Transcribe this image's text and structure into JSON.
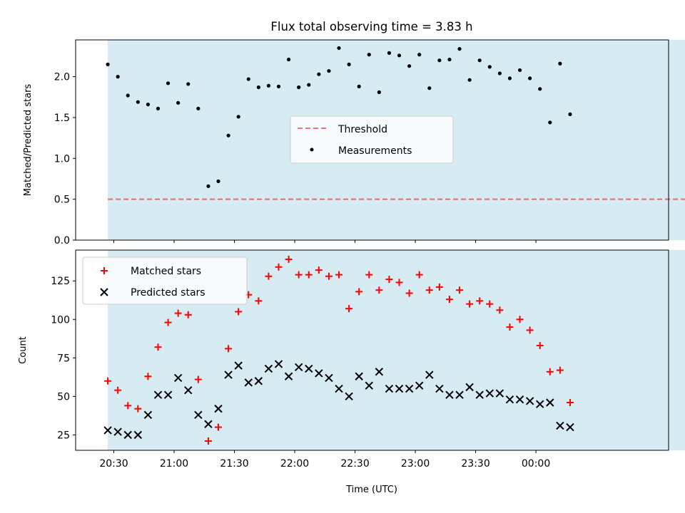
{
  "figure": {
    "title": "Flux total observing time = 3.83 h",
    "xlabel": "Time (UTC)",
    "xticks": [
      "20:30",
      "21:00",
      "21:30",
      "22:00",
      "22:30",
      "23:00",
      "23:30",
      "00:00"
    ]
  },
  "colors": {
    "shade": "#add8e6",
    "threshold": "#ff0000",
    "measurements": "#000000",
    "matched": "#ff0000",
    "predicted": "#000000"
  },
  "chart_data": [
    {
      "type": "scatter",
      "ylabel": "Matched/Predicted stars",
      "ylim": [
        0,
        2.45
      ],
      "yticks": [
        "0.0",
        "0.5",
        "1.0",
        "1.5",
        "2.0"
      ],
      "xlim": [
        "20:11",
        "01:06"
      ],
      "grid": false,
      "legend_placement": "center-right",
      "observing_window": [
        "20:27",
        "01:17"
      ],
      "threshold": {
        "name": "Threshold",
        "value": 0.5
      },
      "series": [
        {
          "name": "Measurements",
          "x": [
            "20:27",
            "20:32",
            "20:37",
            "20:42",
            "20:47",
            "20:52",
            "20:57",
            "21:02",
            "21:07",
            "21:12",
            "21:17",
            "21:22",
            "21:27",
            "21:32",
            "21:37",
            "21:42",
            "21:47",
            "21:52",
            "21:57",
            "22:02",
            "22:07",
            "22:12",
            "22:17",
            "22:22",
            "22:27",
            "22:32",
            "22:37",
            "22:42",
            "22:47",
            "22:52",
            "22:57",
            "23:02",
            "23:07",
            "23:12",
            "23:17",
            "23:22",
            "23:27",
            "23:32",
            "23:37",
            "23:42",
            "23:47",
            "23:52",
            "23:57",
            "00:02",
            "00:07",
            "00:12",
            "00:17"
          ],
          "values": [
            2.15,
            2.0,
            1.77,
            1.69,
            1.66,
            1.61,
            1.92,
            1.68,
            1.91,
            1.61,
            0.66,
            0.72,
            1.28,
            1.51,
            1.97,
            1.87,
            1.89,
            1.88,
            2.21,
            1.87,
            1.9,
            2.03,
            2.07,
            2.35,
            2.15,
            1.88,
            2.27,
            1.81,
            2.29,
            2.26,
            2.13,
            2.27,
            1.86,
            2.2,
            2.21,
            2.34,
            1.96,
            2.2,
            2.12,
            2.04,
            1.98,
            2.08,
            1.98,
            1.85,
            1.44,
            2.16,
            1.54
          ]
        }
      ]
    },
    {
      "type": "scatter",
      "ylabel": "Count",
      "ylim": [
        15,
        145
      ],
      "yticks": [
        "25",
        "50",
        "75",
        "100",
        "125"
      ],
      "xlim": [
        "20:11",
        "01:06"
      ],
      "grid": false,
      "legend_placement": "top-left",
      "observing_window": [
        "20:27",
        "01:17"
      ],
      "series": [
        {
          "name": "Matched stars",
          "marker": "plus",
          "x": [
            "20:27",
            "20:32",
            "20:37",
            "20:42",
            "20:47",
            "20:52",
            "20:57",
            "21:02",
            "21:07",
            "21:12",
            "21:17",
            "21:22",
            "21:27",
            "21:32",
            "21:37",
            "21:42",
            "21:47",
            "21:52",
            "21:57",
            "22:02",
            "22:07",
            "22:12",
            "22:17",
            "22:22",
            "22:27",
            "22:32",
            "22:37",
            "22:42",
            "22:47",
            "22:52",
            "22:57",
            "23:02",
            "23:07",
            "23:12",
            "23:17",
            "23:22",
            "23:27",
            "23:32",
            "23:37",
            "23:42",
            "23:47",
            "23:52",
            "23:57",
            "00:02",
            "00:07",
            "00:12",
            "00:17"
          ],
          "values": [
            60,
            54,
            44,
            42,
            63,
            82,
            98,
            104,
            103,
            61,
            21,
            30,
            81,
            105,
            116,
            112,
            128,
            134,
            139,
            129,
            129,
            132,
            128,
            129,
            107,
            118,
            129,
            119,
            126,
            124,
            117,
            129,
            119,
            121,
            113,
            119,
            110,
            112,
            110,
            106,
            95,
            100,
            93,
            83,
            66,
            67,
            46
          ]
        },
        {
          "name": "Predicted stars",
          "marker": "x",
          "x": [
            "20:27",
            "20:32",
            "20:37",
            "20:42",
            "20:47",
            "20:52",
            "20:57",
            "21:02",
            "21:07",
            "21:12",
            "21:17",
            "21:22",
            "21:27",
            "21:32",
            "21:37",
            "21:42",
            "21:47",
            "21:52",
            "21:57",
            "22:02",
            "22:07",
            "22:12",
            "22:17",
            "22:22",
            "22:27",
            "22:32",
            "22:37",
            "22:42",
            "22:47",
            "22:52",
            "22:57",
            "23:02",
            "23:07",
            "23:12",
            "23:17",
            "23:22",
            "23:27",
            "23:32",
            "23:37",
            "23:42",
            "23:47",
            "23:52",
            "23:57",
            "00:02",
            "00:07",
            "00:12",
            "00:17"
          ],
          "values": [
            28,
            27,
            25,
            25,
            38,
            51,
            51,
            62,
            54,
            38,
            32,
            42,
            64,
            70,
            59,
            60,
            68,
            71,
            63,
            69,
            68,
            65,
            62,
            55,
            50,
            63,
            57,
            66,
            55,
            55,
            55,
            57,
            64,
            55,
            51,
            51,
            56,
            51,
            52,
            52,
            48,
            48,
            47,
            45,
            46,
            31,
            30
          ]
        }
      ]
    }
  ]
}
